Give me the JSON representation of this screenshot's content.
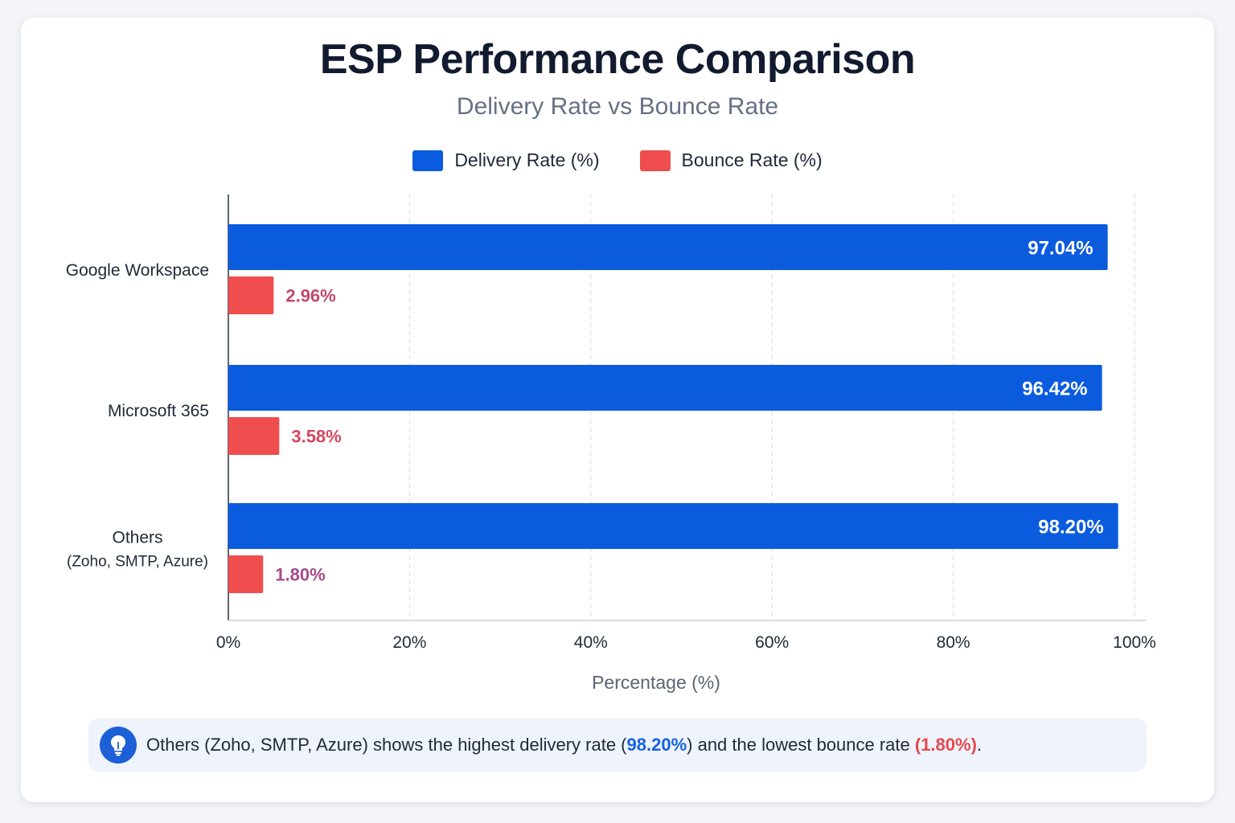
{
  "chart_data": {
    "type": "bar",
    "orientation": "horizontal",
    "title": "ESP Performance Comparison",
    "subtitle": "Delivery Rate vs Bounce Rate",
    "xlabel": "Percentage (%)",
    "xlim": [
      0,
      100
    ],
    "xticks": [
      "0%",
      "20%",
      "40%",
      "60%",
      "80%",
      "100%"
    ],
    "xtick_values": [
      0,
      20,
      40,
      60,
      80,
      100
    ],
    "grid": "vertical dashed",
    "legend_position": "top-center",
    "categories": [
      [
        "Google Workspace"
      ],
      [
        "Microsoft 365"
      ],
      [
        "Others",
        "(Zoho, SMTP, Azure)"
      ]
    ],
    "series": [
      {
        "name": "Delivery Rate (%)",
        "color": "#0b5bdf",
        "values": [
          97.04,
          96.42,
          98.2
        ],
        "labels": [
          "97.04%",
          "96.42%",
          "98.20%"
        ]
      },
      {
        "name": "Bounce Rate (%)",
        "color": "#f04d4f",
        "values": [
          2.96,
          3.58,
          1.8
        ],
        "labels": [
          "2.96%",
          "3.58%",
          "1.80%"
        ],
        "label_colors": [
          "#c2476d",
          "#d8465f",
          "#a64a8a"
        ]
      }
    ]
  },
  "callout": {
    "icon": "lightbulb-icon",
    "text_before": "Others (Zoho, SMTP, Azure) shows the highest delivery rate (",
    "delivery_value": "98.20%",
    "text_middle": ") and the lowest bounce rate ",
    "bounce_value": "(1.80%)",
    "text_after": "."
  }
}
